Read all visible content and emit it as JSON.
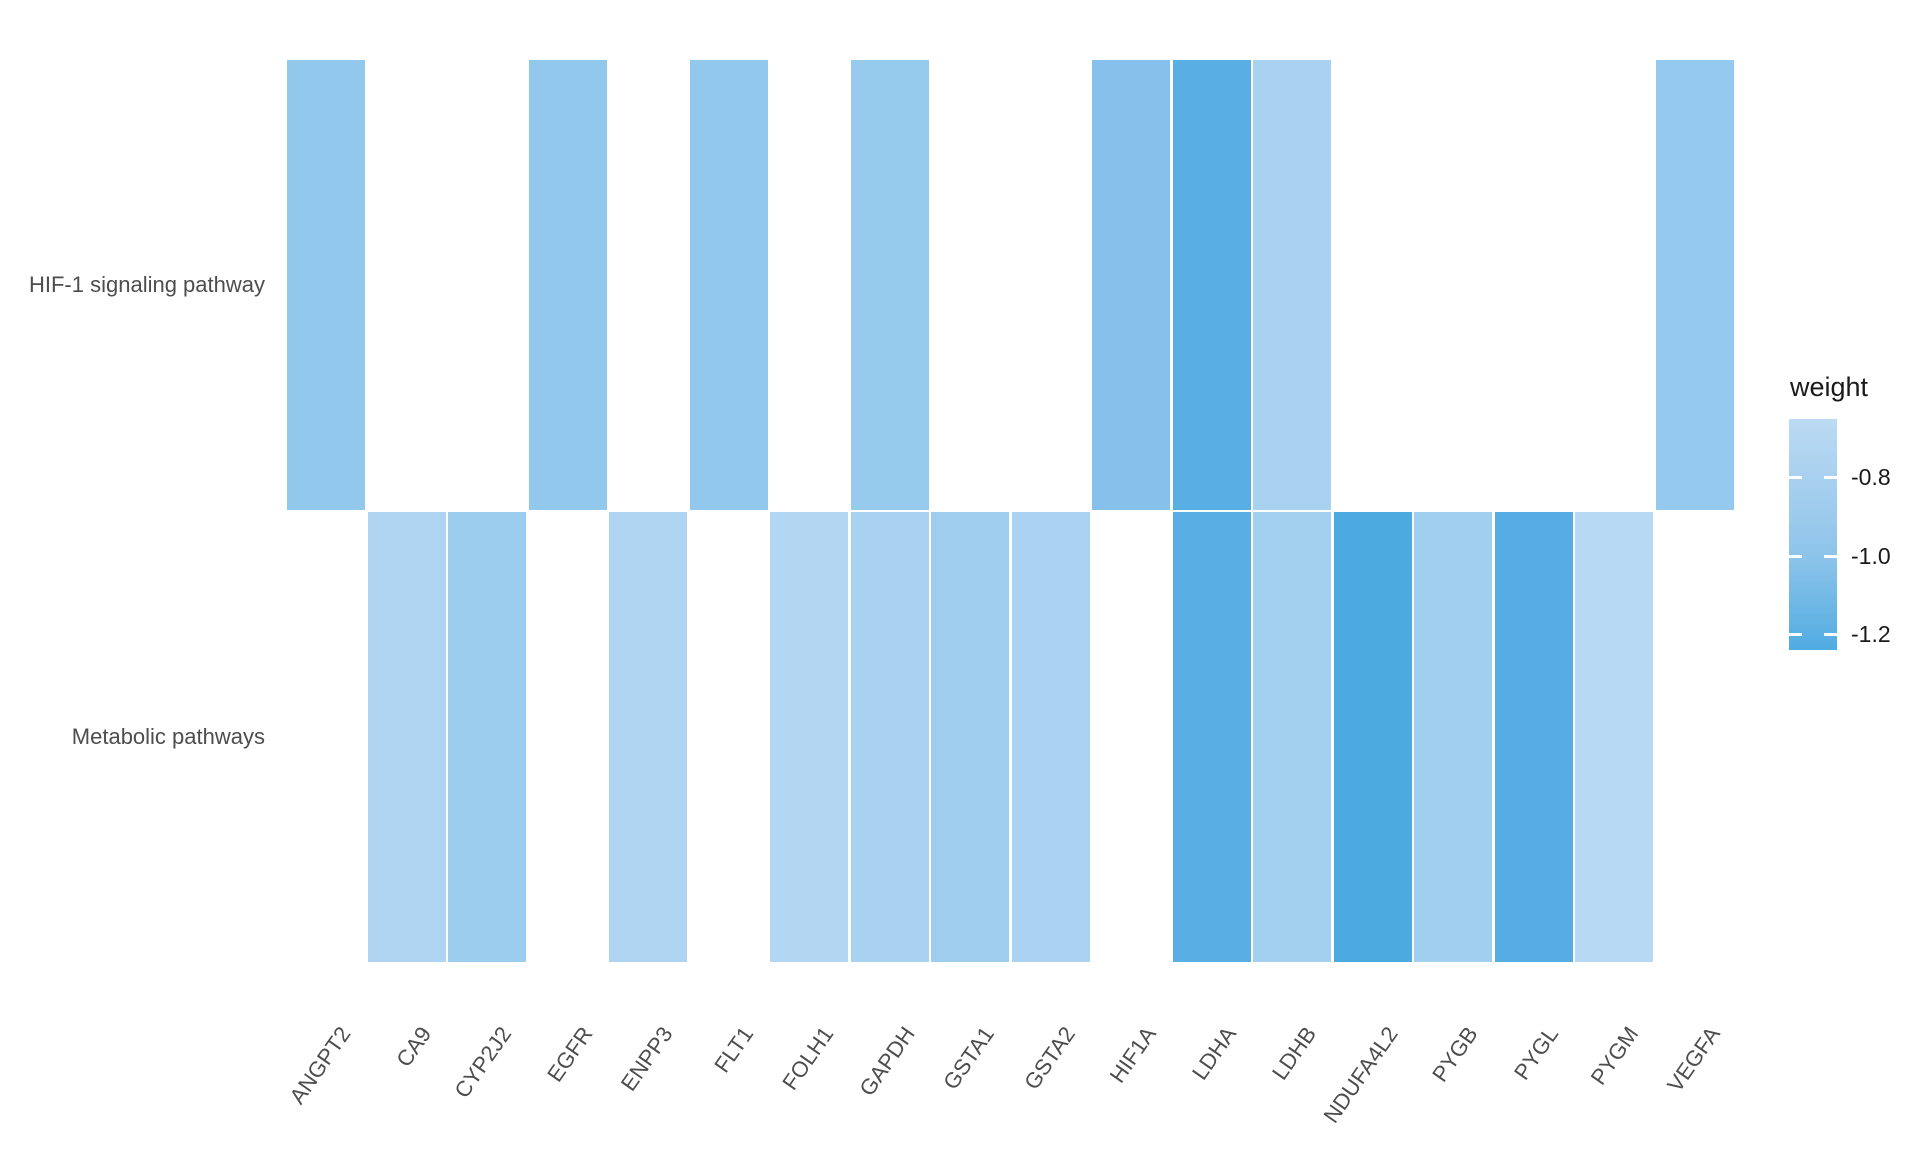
{
  "figure": {
    "background": "#ffffff",
    "text_color_axis": "#4d4d4d",
    "text_color_legend": "#1a1a1a"
  },
  "chart_data": {
    "type": "heatmap",
    "x": [
      "ANGPT2",
      "CA9",
      "CYP2J2",
      "EGFR",
      "ENPP3",
      "FLT1",
      "FOLH1",
      "GAPDH",
      "GSTA1",
      "GSTA2",
      "HIF1A",
      "LDHA",
      "LDHB",
      "NDUFA4L2",
      "PYGB",
      "PYGL",
      "PYGM",
      "VEGFA"
    ],
    "y": [
      "HIF-1 signaling pathway",
      "Metabolic pathways"
    ],
    "grid": false,
    "legend_position": "right",
    "legend_title": "weight",
    "colorbar_ticks": [
      -0.8,
      -1.0,
      -1.2
    ],
    "colorbar_tick_labels": [
      "-0.8",
      "-1.0",
      "-1.2"
    ],
    "colorbar_domain_top": -0.651,
    "colorbar_domain_bottom": -1.241,
    "colorbar_gradient": [
      {
        "offset": 0.0,
        "color": "#bcdaf3"
      },
      {
        "offset": 0.25,
        "color": "#a9d1ef"
      },
      {
        "offset": 0.59,
        "color": "#8ec4ea"
      },
      {
        "offset": 0.93,
        "color": "#5cb0e3"
      },
      {
        "offset": 1.0,
        "color": "#4fabe2"
      }
    ],
    "cells": [
      {
        "row": "HIF-1 signaling pathway",
        "gene": "ANGPT2",
        "weight": -0.97,
        "color": "#93c8ed"
      },
      {
        "row": "HIF-1 signaling pathway",
        "gene": "EGFR",
        "weight": -0.97,
        "color": "#93c8ed"
      },
      {
        "row": "HIF-1 signaling pathway",
        "gene": "FLT1",
        "weight": -0.97,
        "color": "#93c8ed"
      },
      {
        "row": "HIF-1 signaling pathway",
        "gene": "GAPDH",
        "weight": -0.95,
        "color": "#97cbee"
      },
      {
        "row": "HIF-1 signaling pathway",
        "gene": "HIF1A",
        "weight": -1.03,
        "color": "#85c1ea"
      },
      {
        "row": "HIF-1 signaling pathway",
        "gene": "LDHA",
        "weight": -1.21,
        "color": "#59aee3"
      },
      {
        "row": "HIF-1 signaling pathway",
        "gene": "LDHB",
        "weight": -0.81,
        "color": "#a8d2f0"
      },
      {
        "row": "HIF-1 signaling pathway",
        "gene": "VEGFA",
        "weight": -0.96,
        "color": "#95c9ed"
      },
      {
        "row": "Metabolic pathways",
        "gene": "CA9",
        "weight": -0.77,
        "color": "#aed4f1"
      },
      {
        "row": "Metabolic pathways",
        "gene": "CYP2J2",
        "weight": -0.92,
        "color": "#9ccdef"
      },
      {
        "row": "Metabolic pathways",
        "gene": "ENPP3",
        "weight": -0.77,
        "color": "#aed4f1"
      },
      {
        "row": "Metabolic pathways",
        "gene": "FOLH1",
        "weight": -0.74,
        "color": "#b3d6f2"
      },
      {
        "row": "Metabolic pathways",
        "gene": "GAPDH",
        "weight": -0.8,
        "color": "#a9d2f0"
      },
      {
        "row": "Metabolic pathways",
        "gene": "GSTA1",
        "weight": -0.9,
        "color": "#9fcdee"
      },
      {
        "row": "Metabolic pathways",
        "gene": "GSTA2",
        "weight": -0.79,
        "color": "#abd3f1"
      },
      {
        "row": "Metabolic pathways",
        "gene": "LDHA",
        "weight": -1.2,
        "color": "#59aee3"
      },
      {
        "row": "Metabolic pathways",
        "gene": "LDHB",
        "weight": -0.86,
        "color": "#a3d0ef"
      },
      {
        "row": "Metabolic pathways",
        "gene": "NDUFA4L2",
        "weight": -1.26,
        "color": "#4caae1"
      },
      {
        "row": "Metabolic pathways",
        "gene": "PYGB",
        "weight": -0.88,
        "color": "#a0cfef"
      },
      {
        "row": "Metabolic pathways",
        "gene": "PYGL",
        "weight": -1.22,
        "color": "#55ade3"
      },
      {
        "row": "Metabolic pathways",
        "gene": "PYGM",
        "weight": -0.71,
        "color": "#b7d9f3"
      }
    ]
  },
  "ui": {
    "y_axis": {
      "labels": [
        "HIF-1 signaling pathway",
        "Metabolic pathways"
      ]
    },
    "legend": {
      "title": "weight",
      "tick_labels": [
        "-0.8",
        "-1.0",
        "-1.2"
      ]
    }
  }
}
